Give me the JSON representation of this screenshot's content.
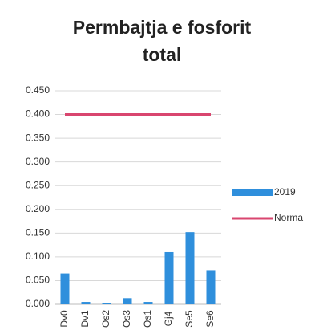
{
  "chart_data": {
    "type": "bar",
    "title": [
      "Permbajtja e fosforit",
      "total"
    ],
    "categories": [
      "Dv0",
      "Dv1",
      "Os2",
      "Os3",
      "Os1",
      "Gj4",
      "Se5",
      "Se6"
    ],
    "series": [
      {
        "name": "2019",
        "type": "bar",
        "color": "#2f8fdc",
        "values": [
          0.065,
          0.005,
          0.003,
          0.013,
          0.005,
          0.11,
          0.152,
          0.072
        ]
      },
      {
        "name": "Norma",
        "type": "line",
        "color": "#d9466f",
        "values": [
          0.4,
          0.4,
          0.4,
          0.4,
          0.4,
          0.4,
          0.4,
          0.4
        ]
      }
    ],
    "ylim": [
      0,
      0.45
    ],
    "yticks": [
      {
        "value": 0,
        "label": "0.000"
      },
      {
        "value": 0.05,
        "label": "0.050"
      },
      {
        "value": 0.1,
        "label": "0.100"
      },
      {
        "value": 0.15,
        "label": "0.150"
      },
      {
        "value": 0.2,
        "label": "0.200"
      },
      {
        "value": 0.25,
        "label": "0.250"
      },
      {
        "value": 0.3,
        "label": "0.300"
      },
      {
        "value": 0.35,
        "label": "0.350"
      },
      {
        "value": 0.4,
        "label": "0.400"
      },
      {
        "value": 0.45,
        "label": "0.450"
      }
    ],
    "grid": true,
    "legend": "right"
  }
}
